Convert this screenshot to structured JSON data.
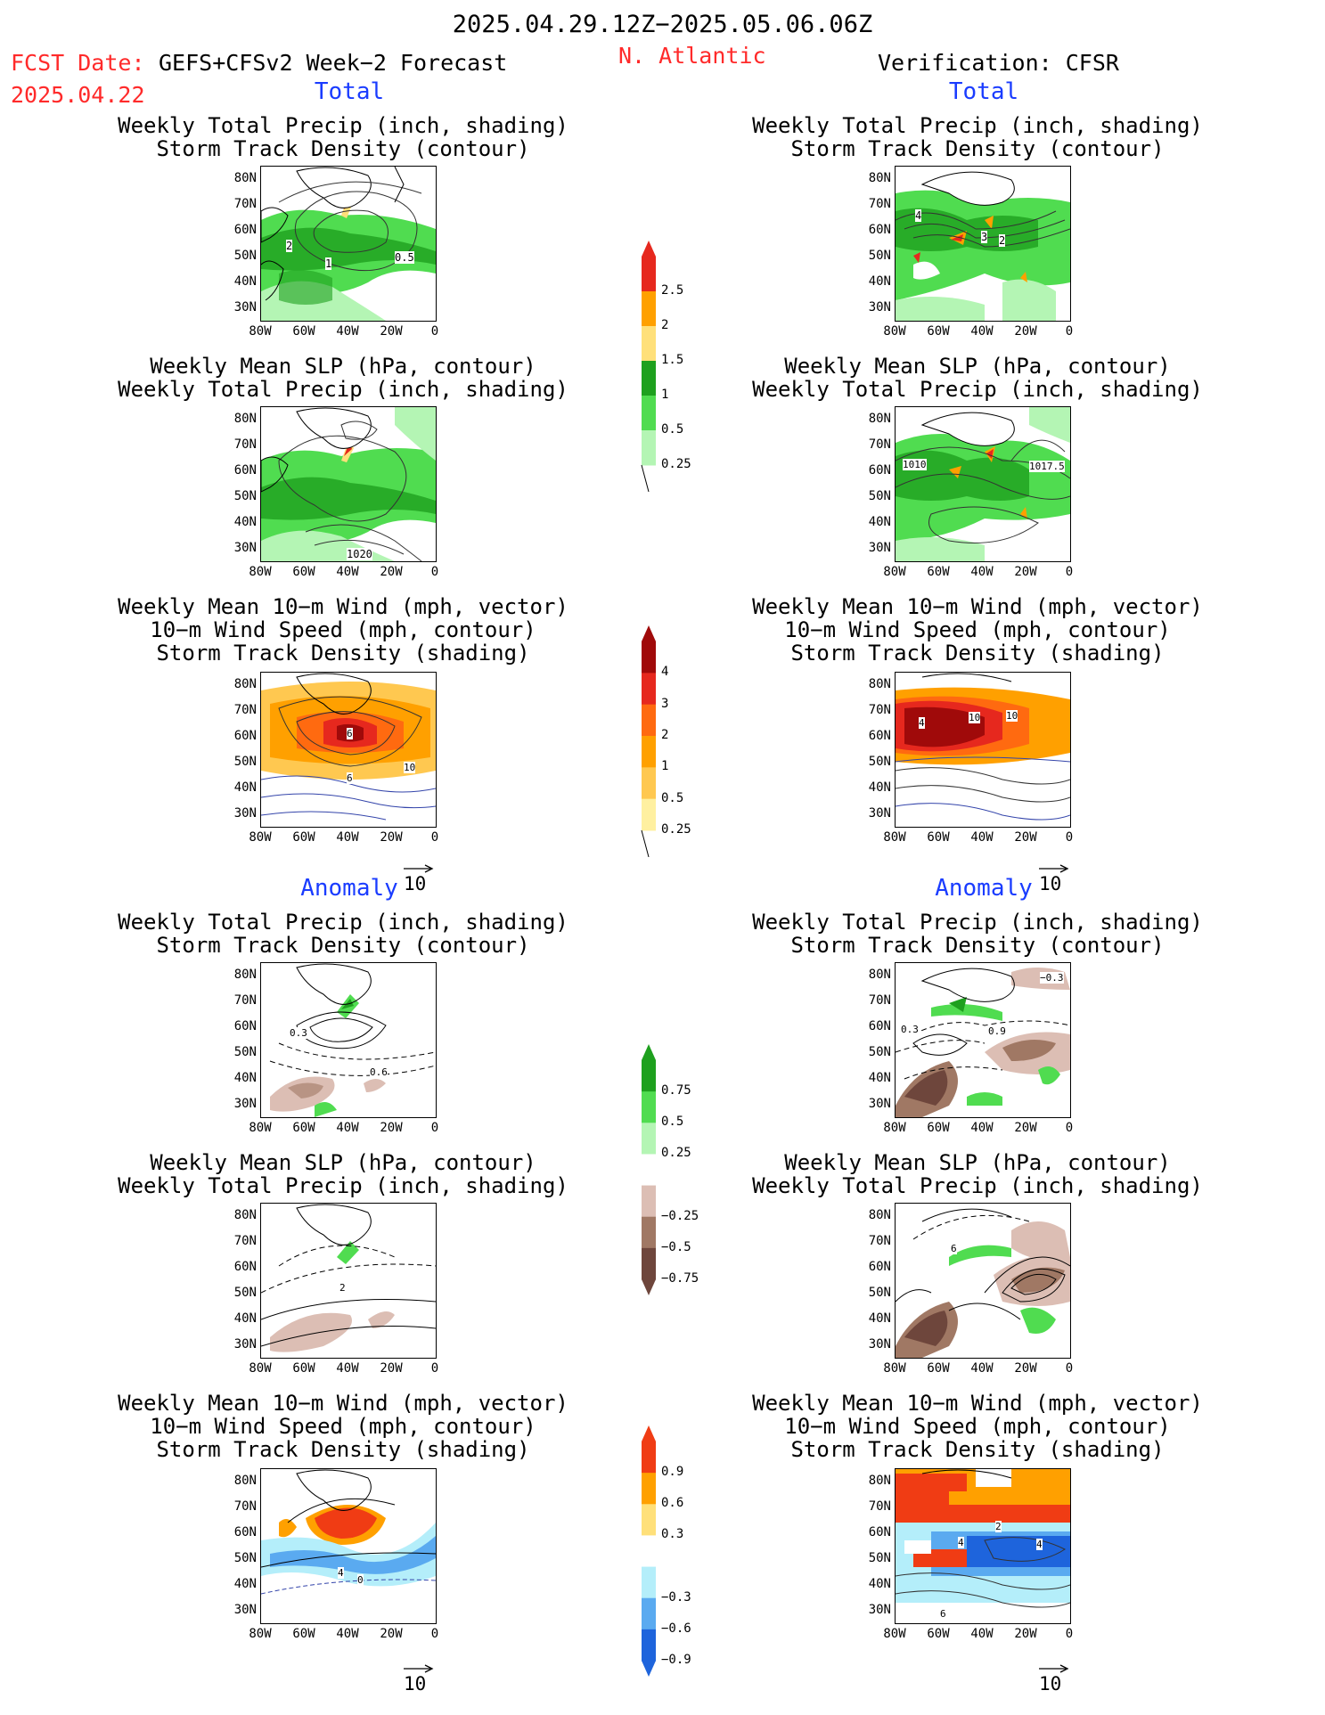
{
  "header": {
    "period": "2025.04.29.12Z−2025.05.06.06Z",
    "fcst_label": "FCST Date:",
    "fcst_model": "GEFS+CFSv2 Week−2 Forecast",
    "fcst_date": "2025.04.22",
    "region": "N. Atlantic",
    "verification": "Verification: CFSR"
  },
  "sections": {
    "total": "Total",
    "anomaly": "Anomaly"
  },
  "map_axes": {
    "y_ticks": [
      "80N",
      "70N",
      "60N",
      "50N",
      "40N",
      "30N"
    ],
    "x_ticks": [
      "80W",
      "60W",
      "40W",
      "20W",
      "0"
    ]
  },
  "titles": {
    "precip_storm": [
      "Weekly Total Precip (inch, shading)",
      "Storm Track Density (contour)"
    ],
    "slp_precip": [
      "Weekly Mean SLP (hPa, contour)",
      "Weekly Total Precip (inch, shading)"
    ],
    "wind_storm": [
      "Weekly Mean 10−m Wind (mph, vector)",
      "10−m Wind Speed (mph, contour)",
      "Storm Track Density (shading)"
    ]
  },
  "contour_labels": {
    "fc_total_precip": [
      "2",
      "1",
      "0.5"
    ],
    "vf_total_precip": [
      "4",
      "3",
      "2"
    ],
    "fc_total_slp": [
      "1020"
    ],
    "vf_total_slp": [
      "1010",
      "1017.5"
    ],
    "fc_total_wind": [
      "6",
      "6",
      "10"
    ],
    "vf_total_wind": [
      "4",
      "10",
      "10"
    ],
    "fc_anom_precip": [
      "0.3",
      "0.6"
    ],
    "vf_anom_precip": [
      "−0.3",
      "0.3",
      "0.9"
    ],
    "fc_anom_slp": [
      "2"
    ],
    "vf_anom_slp": [
      "6"
    ],
    "fc_anom_wind": [
      "4",
      "0"
    ],
    "vf_anom_wind": [
      "4",
      "2",
      "4",
      "6"
    ]
  },
  "colorbars": {
    "total_precip": {
      "labels": [
        "2.5",
        "2",
        "1.5",
        "1",
        "0.5",
        "0.25"
      ],
      "colors": [
        "#e6281e",
        "#ffa000",
        "#ffe07a",
        "#1ea01e",
        "#50dc50",
        "#b4f5b4"
      ]
    },
    "total_storm": {
      "labels": [
        "4",
        "3",
        "2",
        "1",
        "0.5",
        "0.25"
      ],
      "colors": [
        "#a00a0a",
        "#e6281e",
        "#ff6a10",
        "#ffa000",
        "#ffc850",
        "#fff0a0"
      ]
    },
    "anom_precip": {
      "labels": [
        "0.75",
        "0.5",
        "0.25",
        "−0.25",
        "−0.5",
        "−0.75"
      ],
      "colors": [
        "#1ea01e",
        "#50dc50",
        "#b4f5b4",
        "#ffffff",
        "#dcbeb4",
        "#a07864",
        "#6e463c"
      ]
    },
    "anom_storm": {
      "labels": [
        "0.9",
        "0.6",
        "0.3",
        "−0.3",
        "−0.6",
        "−0.9"
      ],
      "colors": [
        "#f03c14",
        "#ffa000",
        "#ffe07a",
        "#ffffff",
        "#b4eefa",
        "#5aaaf0",
        "#1e64dc"
      ]
    }
  },
  "vector_reference": "10"
}
